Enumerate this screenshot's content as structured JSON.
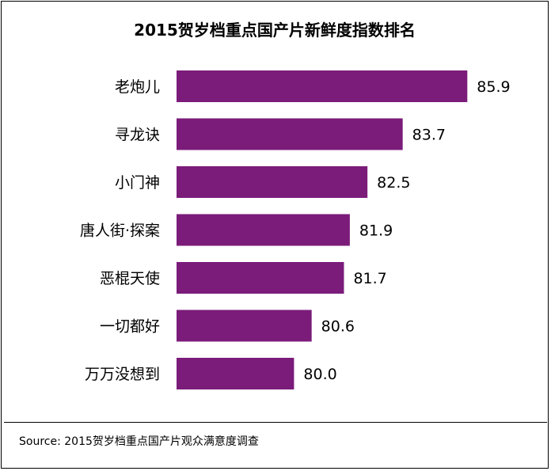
{
  "chart_data": {
    "type": "bar",
    "orientation": "horizontal",
    "title": "2015贺岁档重点国产片新鲜度指数排名",
    "categories": [
      "老炮儿",
      "寻龙诀",
      "小门神",
      "唐人街·探案",
      "恶棍天使",
      "一切都好",
      "万万没想到"
    ],
    "values": [
      85.9,
      83.7,
      82.5,
      81.9,
      81.7,
      80.6,
      80.0
    ],
    "value_labels": [
      "85.9",
      "83.7",
      "82.5",
      "81.9",
      "81.7",
      "80.6",
      "80.0"
    ],
    "xlim": [
      76,
      86
    ],
    "bar_color": "#7B1C7A",
    "grid": false,
    "legend": "none",
    "source": "Source: 2015贺岁档重点国产片观众满意度调查"
  }
}
